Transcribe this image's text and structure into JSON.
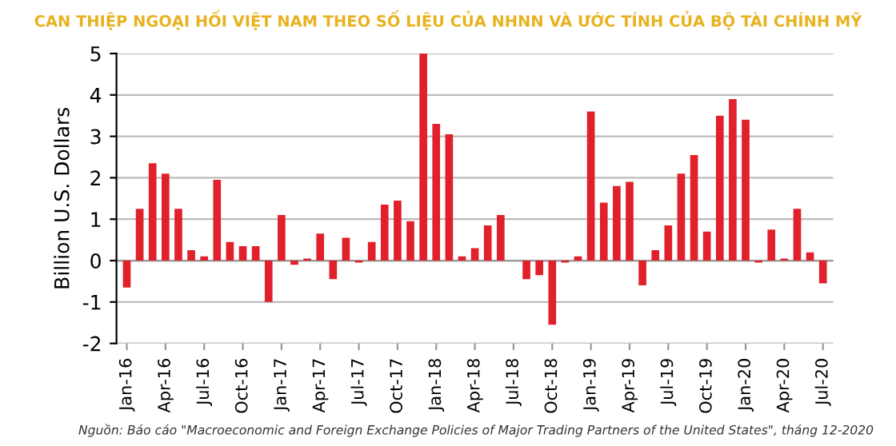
{
  "chart_data": {
    "type": "bar",
    "title": "CAN THIỆP NGOẠI HỐI VIỆT NAM THEO SỐ LIỆU CỦA NHNN VÀ ƯỚC TÍNH CỦA BỘ TÀI CHÍNH MỸ",
    "ylabel": "Billion U.S. Dollars",
    "categories": [
      "Jan-16",
      null,
      null,
      "Apr-16",
      null,
      null,
      "Jul-16",
      null,
      null,
      "Oct-16",
      null,
      null,
      "Jan-17",
      null,
      null,
      "Apr-17",
      null,
      null,
      "Jul-17",
      null,
      null,
      "Oct-17",
      null,
      null,
      "Jan-18",
      null,
      null,
      "Apr-18",
      null,
      null,
      "Jul-18",
      null,
      null,
      "Oct-18",
      null,
      null,
      "Jan-19",
      null,
      null,
      "Apr-19",
      null,
      null,
      "Jul-19",
      null,
      null,
      "Oct-19",
      null,
      null,
      "Jan-20",
      null,
      null,
      "Apr-20",
      null,
      null,
      "Jul-20"
    ],
    "values": [
      -0.65,
      1.25,
      2.35,
      2.1,
      1.25,
      0.25,
      0.1,
      1.95,
      0.45,
      0.35,
      0.35,
      -1.0,
      1.1,
      -0.1,
      0.05,
      0.65,
      -0.45,
      0.55,
      -0.05,
      0.45,
      1.35,
      1.45,
      0.95,
      5.0,
      3.3,
      3.05,
      0.1,
      0.3,
      0.85,
      1.1,
      0.0,
      -0.45,
      -0.35,
      -1.55,
      -0.05,
      0.1,
      3.6,
      1.4,
      1.8,
      1.9,
      -0.6,
      0.25,
      0.85,
      2.1,
      2.55,
      0.7,
      3.5,
      3.9,
      3.4,
      -0.05,
      0.75,
      0.05,
      1.25,
      0.2,
      -0.55
    ],
    "color": "#e0202a",
    "ylim": [
      -2,
      5
    ],
    "yticks": [
      -2,
      -1,
      0,
      1,
      2,
      3,
      4,
      5
    ],
    "grid": "y",
    "annotations": [
      "Nguồn: Báo cáo \"Macroeconomic and Foreign Exchange Policies of Major Trading Partners of the United States\", tháng 12-2020"
    ]
  }
}
